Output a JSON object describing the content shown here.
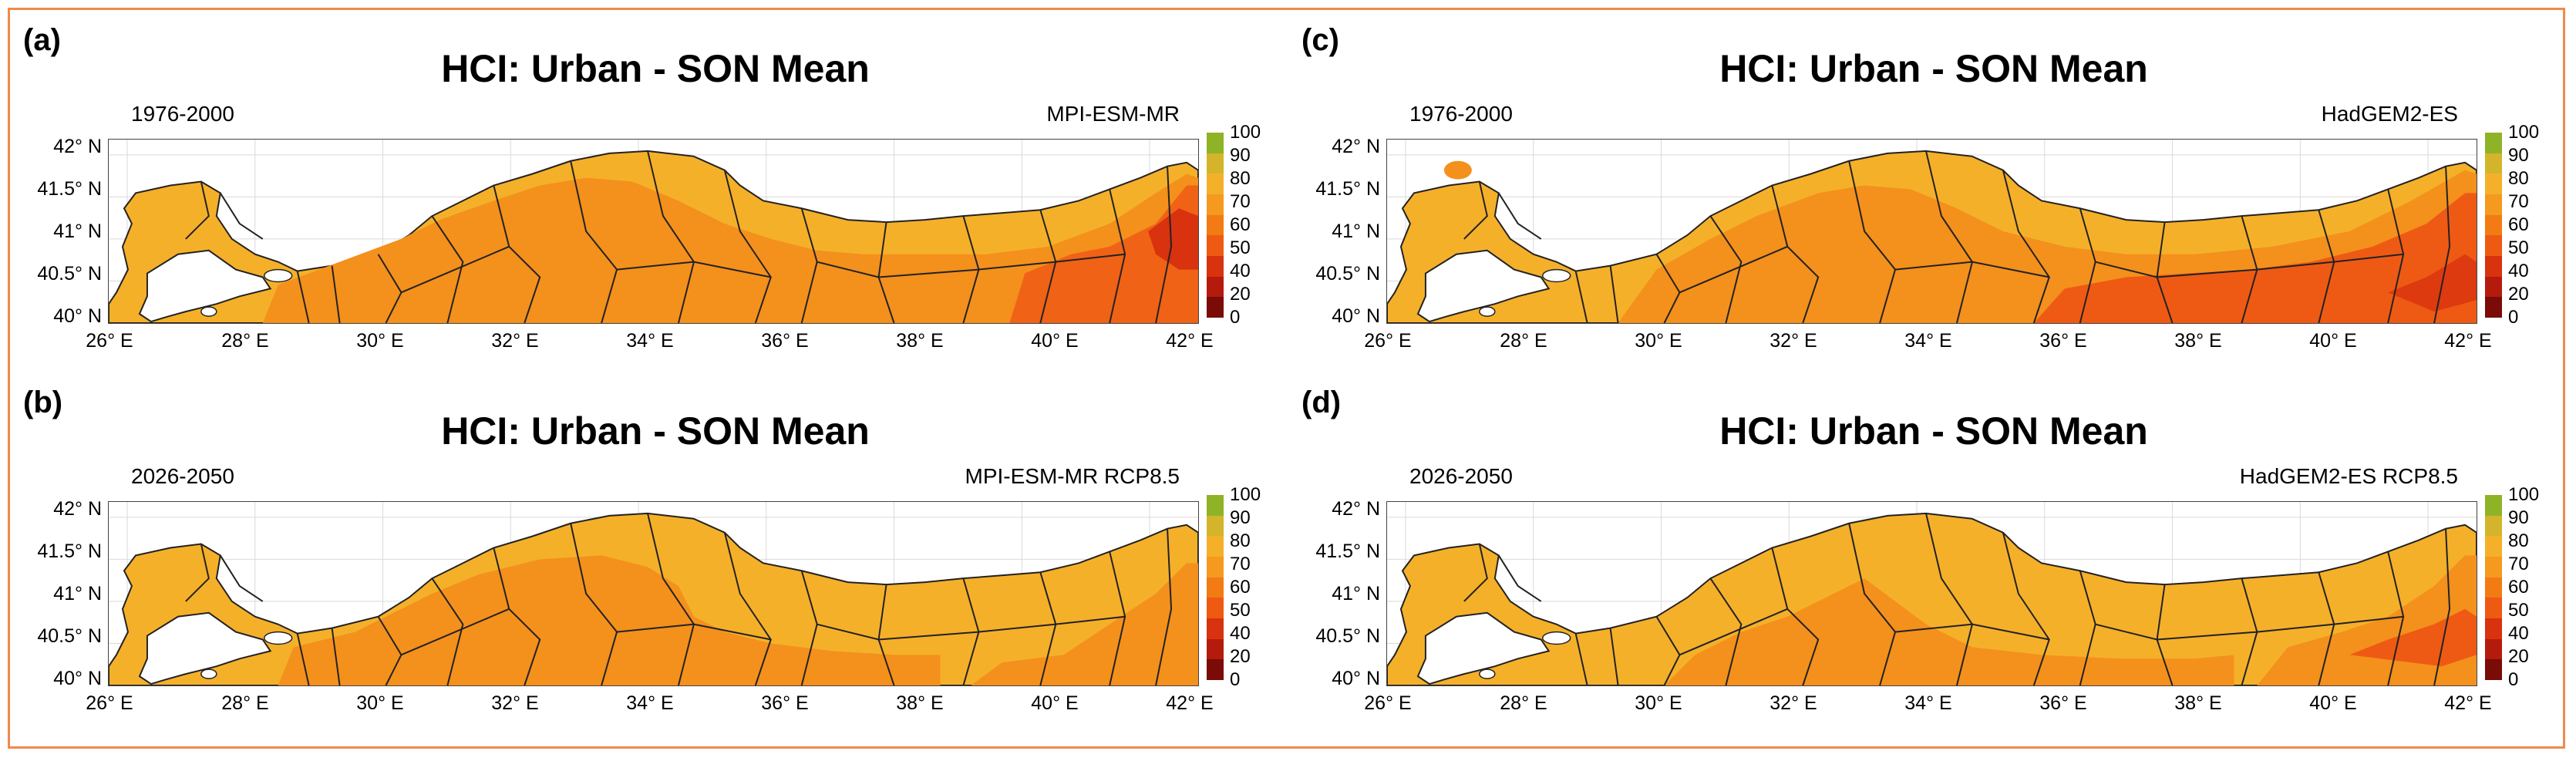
{
  "panels": [
    {
      "letter": "(a)",
      "title": "HCI: Urban - SON Mean",
      "period": "1976-2000",
      "model": "MPI-ESM-MR",
      "variant": "a"
    },
    {
      "letter": "(c)",
      "title": "HCI: Urban - SON Mean",
      "period": "1976-2000",
      "model": "HadGEM2-ES",
      "variant": "c"
    },
    {
      "letter": "(b)",
      "title": "HCI: Urban - SON Mean",
      "period": "2026-2050",
      "model": "MPI-ESM-MR RCP8.5",
      "variant": "b"
    },
    {
      "letter": "(d)",
      "title": "HCI: Urban - SON Mean",
      "period": "2026-2050",
      "model": "HadGEM2-ES RCP8.5",
      "variant": "d"
    }
  ],
  "axes": {
    "lat_labels": [
      "42° N",
      "41.5° N",
      "41° N",
      "40.5° N",
      "40° N"
    ],
    "lon_labels": [
      "26° E",
      "28° E",
      "30° E",
      "32° E",
      "34° E",
      "36° E",
      "38° E",
      "40° E",
      "42° E"
    ]
  },
  "colorbar": {
    "ticks": [
      "100",
      "90",
      "80",
      "70",
      "60",
      "50",
      "40",
      "20",
      "0"
    ],
    "colors": [
      "#8fb327",
      "#d4b42a",
      "#f5b02a",
      "#f59a1f",
      "#f27b14",
      "#ee5a12",
      "#d8320f",
      "#b41b0d",
      "#7a0b06"
    ]
  },
  "colors": {
    "land_yellow": "#f5b02a",
    "land_orange": "#f4901c",
    "land_red": "#ee5a14",
    "sea": "#ffffff",
    "frame": "#f08a4b"
  }
}
